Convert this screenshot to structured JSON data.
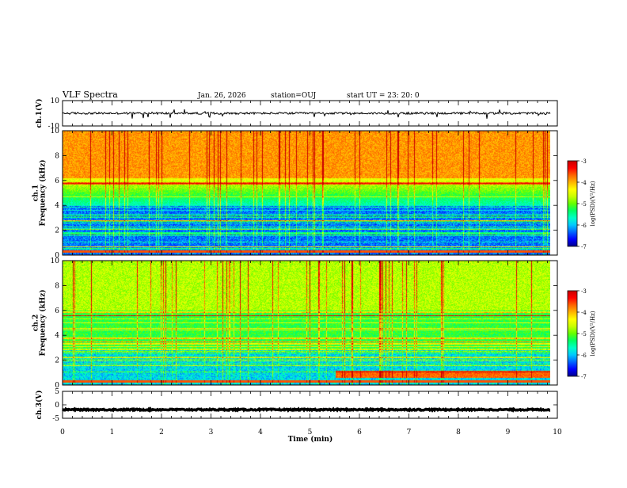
{
  "header": {
    "title": "VLF Spectra",
    "date": "Jan. 26, 2026",
    "station": "station=OUJ",
    "start": "start  UT  =   23: 20: 0"
  },
  "chart_data": {
    "type": "heatmap",
    "x": {
      "label": "Time  (min)",
      "range": [
        0,
        10
      ],
      "ticks": [
        0,
        1,
        2,
        3,
        4,
        5,
        6,
        7,
        8,
        9,
        10
      ],
      "data_end": 9.85
    },
    "panels": [
      {
        "id": "ch1-waveform",
        "kind": "line",
        "ylabel": "ch.1(V)",
        "ylim": [
          -10,
          10
        ],
        "ticks": [
          10,
          -10
        ],
        "baseline": 0
      },
      {
        "id": "ch1-spectrogram",
        "kind": "heatmap",
        "ylabel": "ch.1\nFrequency  (kHz)",
        "ylim": [
          0,
          10
        ],
        "ticks": [
          0,
          2,
          4,
          6,
          8,
          10
        ],
        "colorbar": {
          "label": "log(PSD)(V²/Hz)",
          "range": [
            -7,
            -3
          ],
          "ticks": [
            -3,
            -4,
            -5,
            -6,
            -7
          ]
        }
      },
      {
        "id": "ch2-spectrogram",
        "kind": "heatmap",
        "ylabel": "ch.2\nFrequency  (kHz)",
        "ylim": [
          0,
          10
        ],
        "ticks": [
          0,
          2,
          4,
          6,
          8,
          10
        ],
        "colorbar": {
          "label": "log(PSD)(V²/Hz)",
          "range": [
            -7,
            -3
          ],
          "ticks": [
            -3,
            -4,
            -5,
            -6,
            -7
          ]
        }
      },
      {
        "id": "ch3-waveform",
        "kind": "line",
        "ylabel": "ch.3(V)",
        "ylim": [
          -5,
          5
        ],
        "ticks": [
          5,
          0,
          -5
        ],
        "baseline": -1.8
      }
    ],
    "colormap": [
      "#00008c",
      "#0000ff",
      "#0064ff",
      "#00c8ff",
      "#00ffc8",
      "#00ff64",
      "#64ff00",
      "#c8ff00",
      "#ffff00",
      "#ffb400",
      "#ff6400",
      "#ff0000",
      "#c80000"
    ]
  }
}
